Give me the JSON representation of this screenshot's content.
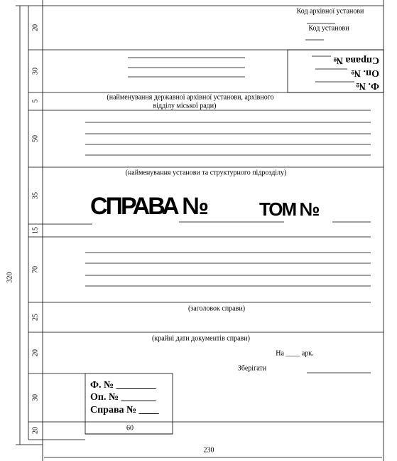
{
  "header": {
    "archive_code": "Код архівної установи",
    "institution_code": "Код установи"
  },
  "corner_box": {
    "fund": "Ф. №",
    "inventory": "Оп. №",
    "file": "Справа №"
  },
  "captions": {
    "archive_name_1": "(найменування державної архівної установи, архівного",
    "archive_name_2": "відділу міської ради)",
    "institution_name": "(найменування установи та структурного підрозділу)",
    "file_title": "(заголовок справи)",
    "dates": "(крайні дати документів справи)"
  },
  "main": {
    "file": "СПРАВА №",
    "volume": "ТОМ №"
  },
  "sheets": "На ____ арк.",
  "keep": "Зберігати",
  "bottom_box": {
    "fund": "Ф. № ________",
    "inventory": "Оп. № _______",
    "file": "Справа № ____"
  },
  "dimensions": {
    "rows": [
      "20",
      "30",
      "5",
      "50",
      "35",
      "15",
      "70",
      "25",
      "20",
      "30",
      "20"
    ],
    "height": "320",
    "box_width": "60",
    "width": "230"
  }
}
